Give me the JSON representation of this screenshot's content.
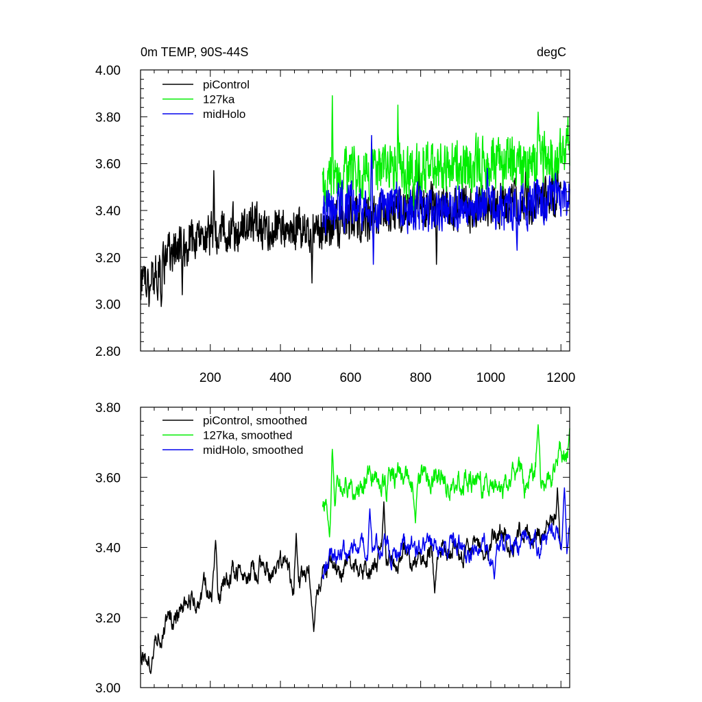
{
  "chart_data": [
    {
      "id": "top",
      "type": "line",
      "title_left": "0m TEMP, 90S-44S",
      "title_right": "degC",
      "xlabel": "",
      "ylabel": "",
      "xlim": [
        1,
        1225
      ],
      "ylim": [
        2.8,
        4.0
      ],
      "x_ticks": [
        200,
        400,
        600,
        800,
        1000,
        1200
      ],
      "x_tick_labels": [
        "200",
        "400",
        "600",
        "800",
        "1000",
        "1200"
      ],
      "y_ticks": [
        2.8,
        3.0,
        3.2,
        3.4,
        3.6,
        3.8,
        4.0
      ],
      "y_tick_labels": [
        "2.80",
        "3.00",
        "3.20",
        "3.40",
        "3.60",
        "3.80",
        "4.00"
      ],
      "legend_position": "top-left",
      "series": [
        {
          "name": "piControl",
          "color": "#000000",
          "x_start": 1,
          "x_end": 1200,
          "trend": [
            [
              1,
              3.1
            ],
            [
              50,
              3.13
            ],
            [
              100,
              3.24
            ],
            [
              200,
              3.3
            ],
            [
              300,
              3.33
            ],
            [
              400,
              3.33
            ],
            [
              495,
              3.32
            ],
            [
              600,
              3.36
            ],
            [
              800,
              3.41
            ],
            [
              1000,
              3.42
            ],
            [
              1100,
              3.44
            ],
            [
              1200,
              3.46
            ]
          ],
          "noise_amplitude": 0.095,
          "peaks": [
            [
              210,
              3.57
            ],
            [
              795,
              3.62
            ],
            [
              1100,
              3.6
            ],
            [
              1190,
              3.6
            ]
          ],
          "troughs": [
            [
              25,
              2.99
            ],
            [
              60,
              2.99
            ],
            [
              120,
              3.04
            ],
            [
              490,
              3.09
            ],
            [
              845,
              3.17
            ]
          ]
        },
        {
          "name": "127ka",
          "color": "#00ee00",
          "x_start": 520,
          "x_end": 1225,
          "trend": [
            [
              520,
              3.48
            ],
            [
              600,
              3.56
            ],
            [
              800,
              3.58
            ],
            [
              1000,
              3.6
            ],
            [
              1100,
              3.6
            ],
            [
              1225,
              3.64
            ]
          ],
          "noise_amplitude": 0.11,
          "peaks": [
            [
              548,
              3.89
            ],
            [
              735,
              3.85
            ],
            [
              1135,
              3.82
            ],
            [
              1220,
              3.8
            ]
          ],
          "troughs": [
            [
              530,
              3.42
            ],
            [
              780,
              3.4
            ]
          ]
        },
        {
          "name": "midHolo",
          "color": "#0000ee",
          "x_start": 520,
          "x_end": 1225,
          "trend": [
            [
              520,
              3.4
            ],
            [
              600,
              3.42
            ],
            [
              800,
              3.41
            ],
            [
              1000,
              3.41
            ],
            [
              1100,
              3.43
            ],
            [
              1225,
              3.45
            ]
          ],
          "noise_amplitude": 0.095,
          "peaks": [
            [
              660,
              3.72
            ],
            [
              990,
              3.58
            ],
            [
              1185,
              3.56
            ]
          ],
          "troughs": [
            [
              665,
              3.17
            ],
            [
              1075,
              3.23
            ]
          ]
        }
      ]
    },
    {
      "id": "bottom",
      "type": "line",
      "title_left": "",
      "title_right": "",
      "xlabel": "",
      "ylabel": "",
      "xlim": [
        1,
        1225
      ],
      "ylim": [
        3.0,
        3.8
      ],
      "x_ticks": [
        200,
        400,
        600,
        800,
        1000,
        1200
      ],
      "x_tick_labels": [],
      "y_ticks": [
        3.0,
        3.2,
        3.4,
        3.6,
        3.8
      ],
      "y_tick_labels": [
        "3.00",
        "3.20",
        "3.40",
        "3.60",
        "3.80"
      ],
      "legend_position": "top-left",
      "series": [
        {
          "name": "piControl, smoothed",
          "color": "#000000",
          "x_start": 1,
          "x_end": 1200,
          "trend": [
            [
              1,
              3.11
            ],
            [
              40,
              3.1
            ],
            [
              80,
              3.18
            ],
            [
              150,
              3.26
            ],
            [
              250,
              3.31
            ],
            [
              400,
              3.34
            ],
            [
              490,
              3.29
            ],
            [
              520,
              3.32
            ],
            [
              600,
              3.35
            ],
            [
              800,
              3.37
            ],
            [
              1000,
              3.42
            ],
            [
              1100,
              3.44
            ],
            [
              1200,
              3.46
            ]
          ],
          "noise_amplitude": 0.045,
          "peaks": [
            [
              215,
              3.42
            ],
            [
              445,
              3.44
            ],
            [
              695,
              3.53
            ],
            [
              1190,
              3.57
            ]
          ],
          "troughs": [
            [
              30,
              3.04
            ],
            [
              495,
              3.16
            ],
            [
              840,
              3.27
            ]
          ]
        },
        {
          "name": "127ka, smoothed",
          "color": "#00ee00",
          "x_start": 520,
          "x_end": 1225,
          "trend": [
            [
              520,
              3.49
            ],
            [
              550,
              3.55
            ],
            [
              600,
              3.58
            ],
            [
              800,
              3.59
            ],
            [
              1000,
              3.58
            ],
            [
              1100,
              3.6
            ],
            [
              1225,
              3.66
            ]
          ],
          "noise_amplitude": 0.05,
          "peaks": [
            [
              548,
              3.68
            ],
            [
              1135,
              3.75
            ],
            [
              1225,
              3.74
            ]
          ],
          "troughs": [
            [
              540,
              3.43
            ],
            [
              785,
              3.47
            ]
          ]
        },
        {
          "name": "midHolo, smoothed",
          "color": "#0000ee",
          "x_start": 520,
          "x_end": 1225,
          "trend": [
            [
              520,
              3.34
            ],
            [
              600,
              3.4
            ],
            [
              800,
              3.4
            ],
            [
              1000,
              3.4
            ],
            [
              1100,
              3.42
            ],
            [
              1225,
              3.44
            ]
          ],
          "noise_amplitude": 0.04,
          "peaks": [
            [
              655,
              3.51
            ],
            [
              1210,
              3.57
            ]
          ],
          "troughs": [
            [
              1010,
              3.31
            ]
          ]
        }
      ]
    }
  ]
}
